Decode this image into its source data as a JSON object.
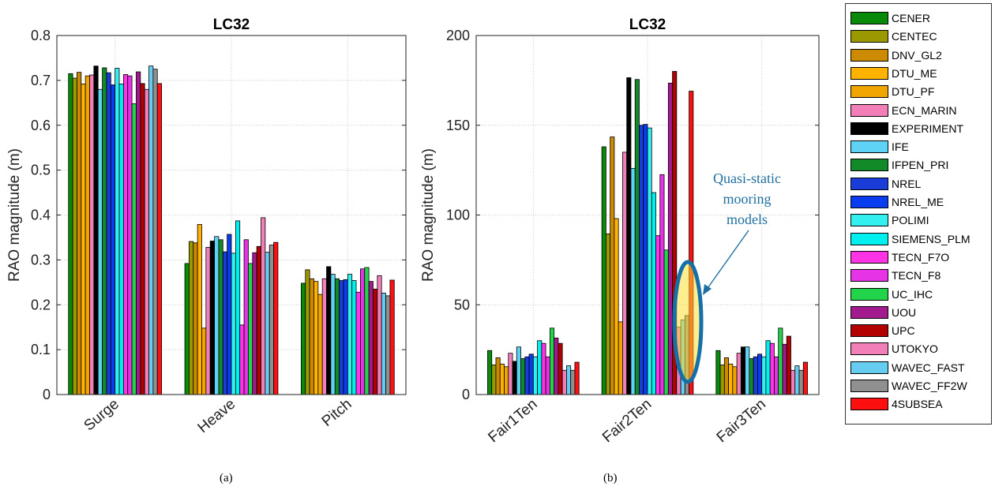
{
  "figure": {
    "caption_a": "(a)",
    "caption_b": "(b)",
    "legend": [
      {
        "name": "CENER",
        "color": "#0a8a0a"
      },
      {
        "name": "CENTEC",
        "color": "#9a9a00"
      },
      {
        "name": "DNV_GL2",
        "color": "#cc8a00"
      },
      {
        "name": "DTU_ME",
        "color": "#ffb300"
      },
      {
        "name": "DTU_PF",
        "color": "#f0a500"
      },
      {
        "name": "ECN_MARIN",
        "color": "#f27fb8"
      },
      {
        "name": "EXPERIMENT",
        "color": "#000000"
      },
      {
        "name": "IFE",
        "color": "#5fd3f5"
      },
      {
        "name": "IFPEN_PRI",
        "color": "#138a28"
      },
      {
        "name": "NREL",
        "color": "#1a3cd8"
      },
      {
        "name": "NREL_ME",
        "color": "#0a3cf0"
      },
      {
        "name": "POLIMI",
        "color": "#33f0f0"
      },
      {
        "name": "SIEMENS_PLM",
        "color": "#00f0f0"
      },
      {
        "name": "TECN_F7O",
        "color": "#ff33e6"
      },
      {
        "name": "TECN_F8",
        "color": "#e633e6"
      },
      {
        "name": "UC_IHC",
        "color": "#22d44a"
      },
      {
        "name": "UOU",
        "color": "#a31a8f"
      },
      {
        "name": "UPC",
        "color": "#b30000"
      },
      {
        "name": "UTOKYO",
        "color": "#f27fb8"
      },
      {
        "name": "WAVEC_FAST",
        "color": "#66ccf0"
      },
      {
        "name": "WAVEC_FF2W",
        "color": "#909090"
      },
      {
        "name": "4SUBSEA",
        "color": "#ff1010"
      }
    ],
    "annotation": {
      "text_lines": [
        "Quasi-static",
        "mooring",
        "models"
      ],
      "color": "#1e6fa0",
      "highlight_fill": "#ffe033",
      "outline_color": "#1670a8"
    }
  },
  "chart_data": [
    {
      "type": "bar",
      "title": "LC32",
      "xlabel": "",
      "ylabel": "RAO magnitude (m)",
      "ylim": [
        0,
        0.8
      ],
      "yticks": [
        "0",
        "0.1",
        "0.2",
        "0.3",
        "0.4",
        "0.5",
        "0.6",
        "0.7",
        "0.8"
      ],
      "grid": true,
      "categories": [
        "Surge",
        "Heave",
        "Pitch"
      ],
      "series": [
        {
          "name": "CENER",
          "values": [
            0.715,
            0.292,
            0.248
          ]
        },
        {
          "name": "CENTEC",
          "values": [
            0.705,
            0.341,
            0.278
          ]
        },
        {
          "name": "DNV_GL2",
          "values": [
            0.718,
            0.338,
            0.258
          ]
        },
        {
          "name": "DTU_ME",
          "values": [
            0.692,
            0.379,
            0.252
          ]
        },
        {
          "name": "DTU_PF",
          "values": [
            0.71,
            0.148,
            0.223
          ]
        },
        {
          "name": "ECN_MARIN",
          "values": [
            0.712,
            0.328,
            0.258
          ]
        },
        {
          "name": "EXPERIMENT",
          "values": [
            0.732,
            0.342,
            0.285
          ]
        },
        {
          "name": "IFE",
          "values": [
            0.68,
            0.352,
            0.268
          ]
        },
        {
          "name": "IFPEN_PRI",
          "values": [
            0.728,
            0.345,
            0.258
          ]
        },
        {
          "name": "NREL",
          "values": [
            0.717,
            0.318,
            0.254
          ]
        },
        {
          "name": "NREL_ME",
          "values": [
            0.69,
            0.357,
            0.256
          ]
        },
        {
          "name": "POLIMI",
          "values": [
            0.727,
            0.315,
            0.268
          ]
        },
        {
          "name": "SIEMENS_PLM",
          "values": [
            0.692,
            0.387,
            0.254
          ]
        },
        {
          "name": "TECN_F7O",
          "values": [
            0.713,
            0.155,
            0.228
          ]
        },
        {
          "name": "TECN_F8",
          "values": [
            0.71,
            0.345,
            0.28
          ]
        },
        {
          "name": "UC_IHC",
          "values": [
            0.648,
            0.292,
            0.283
          ]
        },
        {
          "name": "UOU",
          "values": [
            0.719,
            0.316,
            0.252
          ]
        },
        {
          "name": "UPC",
          "values": [
            0.693,
            0.33,
            0.235
          ]
        },
        {
          "name": "UTOKYO",
          "values": [
            0.68,
            0.394,
            0.265
          ]
        },
        {
          "name": "WAVEC_FAST",
          "values": [
            0.732,
            0.317,
            0.226
          ]
        },
        {
          "name": "WAVEC_FF2W",
          "values": [
            0.725,
            0.333,
            0.22
          ]
        },
        {
          "name": "4SUBSEA",
          "values": [
            0.693,
            0.339,
            0.255
          ]
        }
      ]
    },
    {
      "type": "bar",
      "title": "LC32",
      "xlabel": "",
      "ylabel": "RAO magnitude (m)",
      "ylim": [
        0,
        200
      ],
      "yticks": [
        "0",
        "50",
        "100",
        "150",
        "200"
      ],
      "grid": true,
      "categories": [
        "Fair1Ten",
        "Fair2Ten",
        "Fair3Ten"
      ],
      "series": [
        {
          "name": "CENER",
          "values": [
            24.5,
            138,
            24.5
          ]
        },
        {
          "name": "CENTEC",
          "values": [
            16.5,
            89.5,
            16.5
          ]
        },
        {
          "name": "DNV_GL2",
          "values": [
            20.5,
            143.5,
            20.5
          ]
        },
        {
          "name": "DTU_ME",
          "values": [
            17.0,
            98.0,
            17.0
          ]
        },
        {
          "name": "DTU_PF",
          "values": [
            15.5,
            40.5,
            15.5
          ]
        },
        {
          "name": "ECN_MARIN",
          "values": [
            23.0,
            135,
            23.0
          ]
        },
        {
          "name": "EXPERIMENT",
          "values": [
            18.5,
            176.5,
            26.5
          ]
        },
        {
          "name": "IFE",
          "values": [
            26.5,
            126,
            26.5
          ]
        },
        {
          "name": "IFPEN_PRI",
          "values": [
            20.0,
            175.5,
            20.0
          ]
        },
        {
          "name": "NREL",
          "values": [
            21.0,
            150,
            21.0
          ]
        },
        {
          "name": "NREL_ME",
          "values": [
            22.5,
            150.5,
            22.5
          ]
        },
        {
          "name": "POLIMI",
          "values": [
            21.0,
            148.5,
            21.0
          ]
        },
        {
          "name": "SIEMENS_PLM",
          "values": [
            30.0,
            112.5,
            30.0
          ]
        },
        {
          "name": "TECN_F7O",
          "values": [
            28.5,
            88.5,
            28.5
          ]
        },
        {
          "name": "TECN_F8",
          "values": [
            21.0,
            122.5,
            21.0
          ]
        },
        {
          "name": "UC_IHC",
          "values": [
            37.0,
            80.5,
            37.0
          ]
        },
        {
          "name": "UOU",
          "values": [
            31.5,
            173.5,
            28.0
          ]
        },
        {
          "name": "UPC",
          "values": [
            28.5,
            180,
            32.5
          ]
        },
        {
          "name": "UTOKYO",
          "values": [
            13.5,
            37.5,
            13.5
          ]
        },
        {
          "name": "WAVEC_FAST",
          "values": [
            16.0,
            41.5,
            16.0
          ]
        },
        {
          "name": "WAVEC_FF2W",
          "values": [
            13.5,
            44.0,
            13.5
          ]
        },
        {
          "name": "4SUBSEA",
          "values": [
            18.0,
            169,
            18.0
          ]
        }
      ]
    }
  ]
}
